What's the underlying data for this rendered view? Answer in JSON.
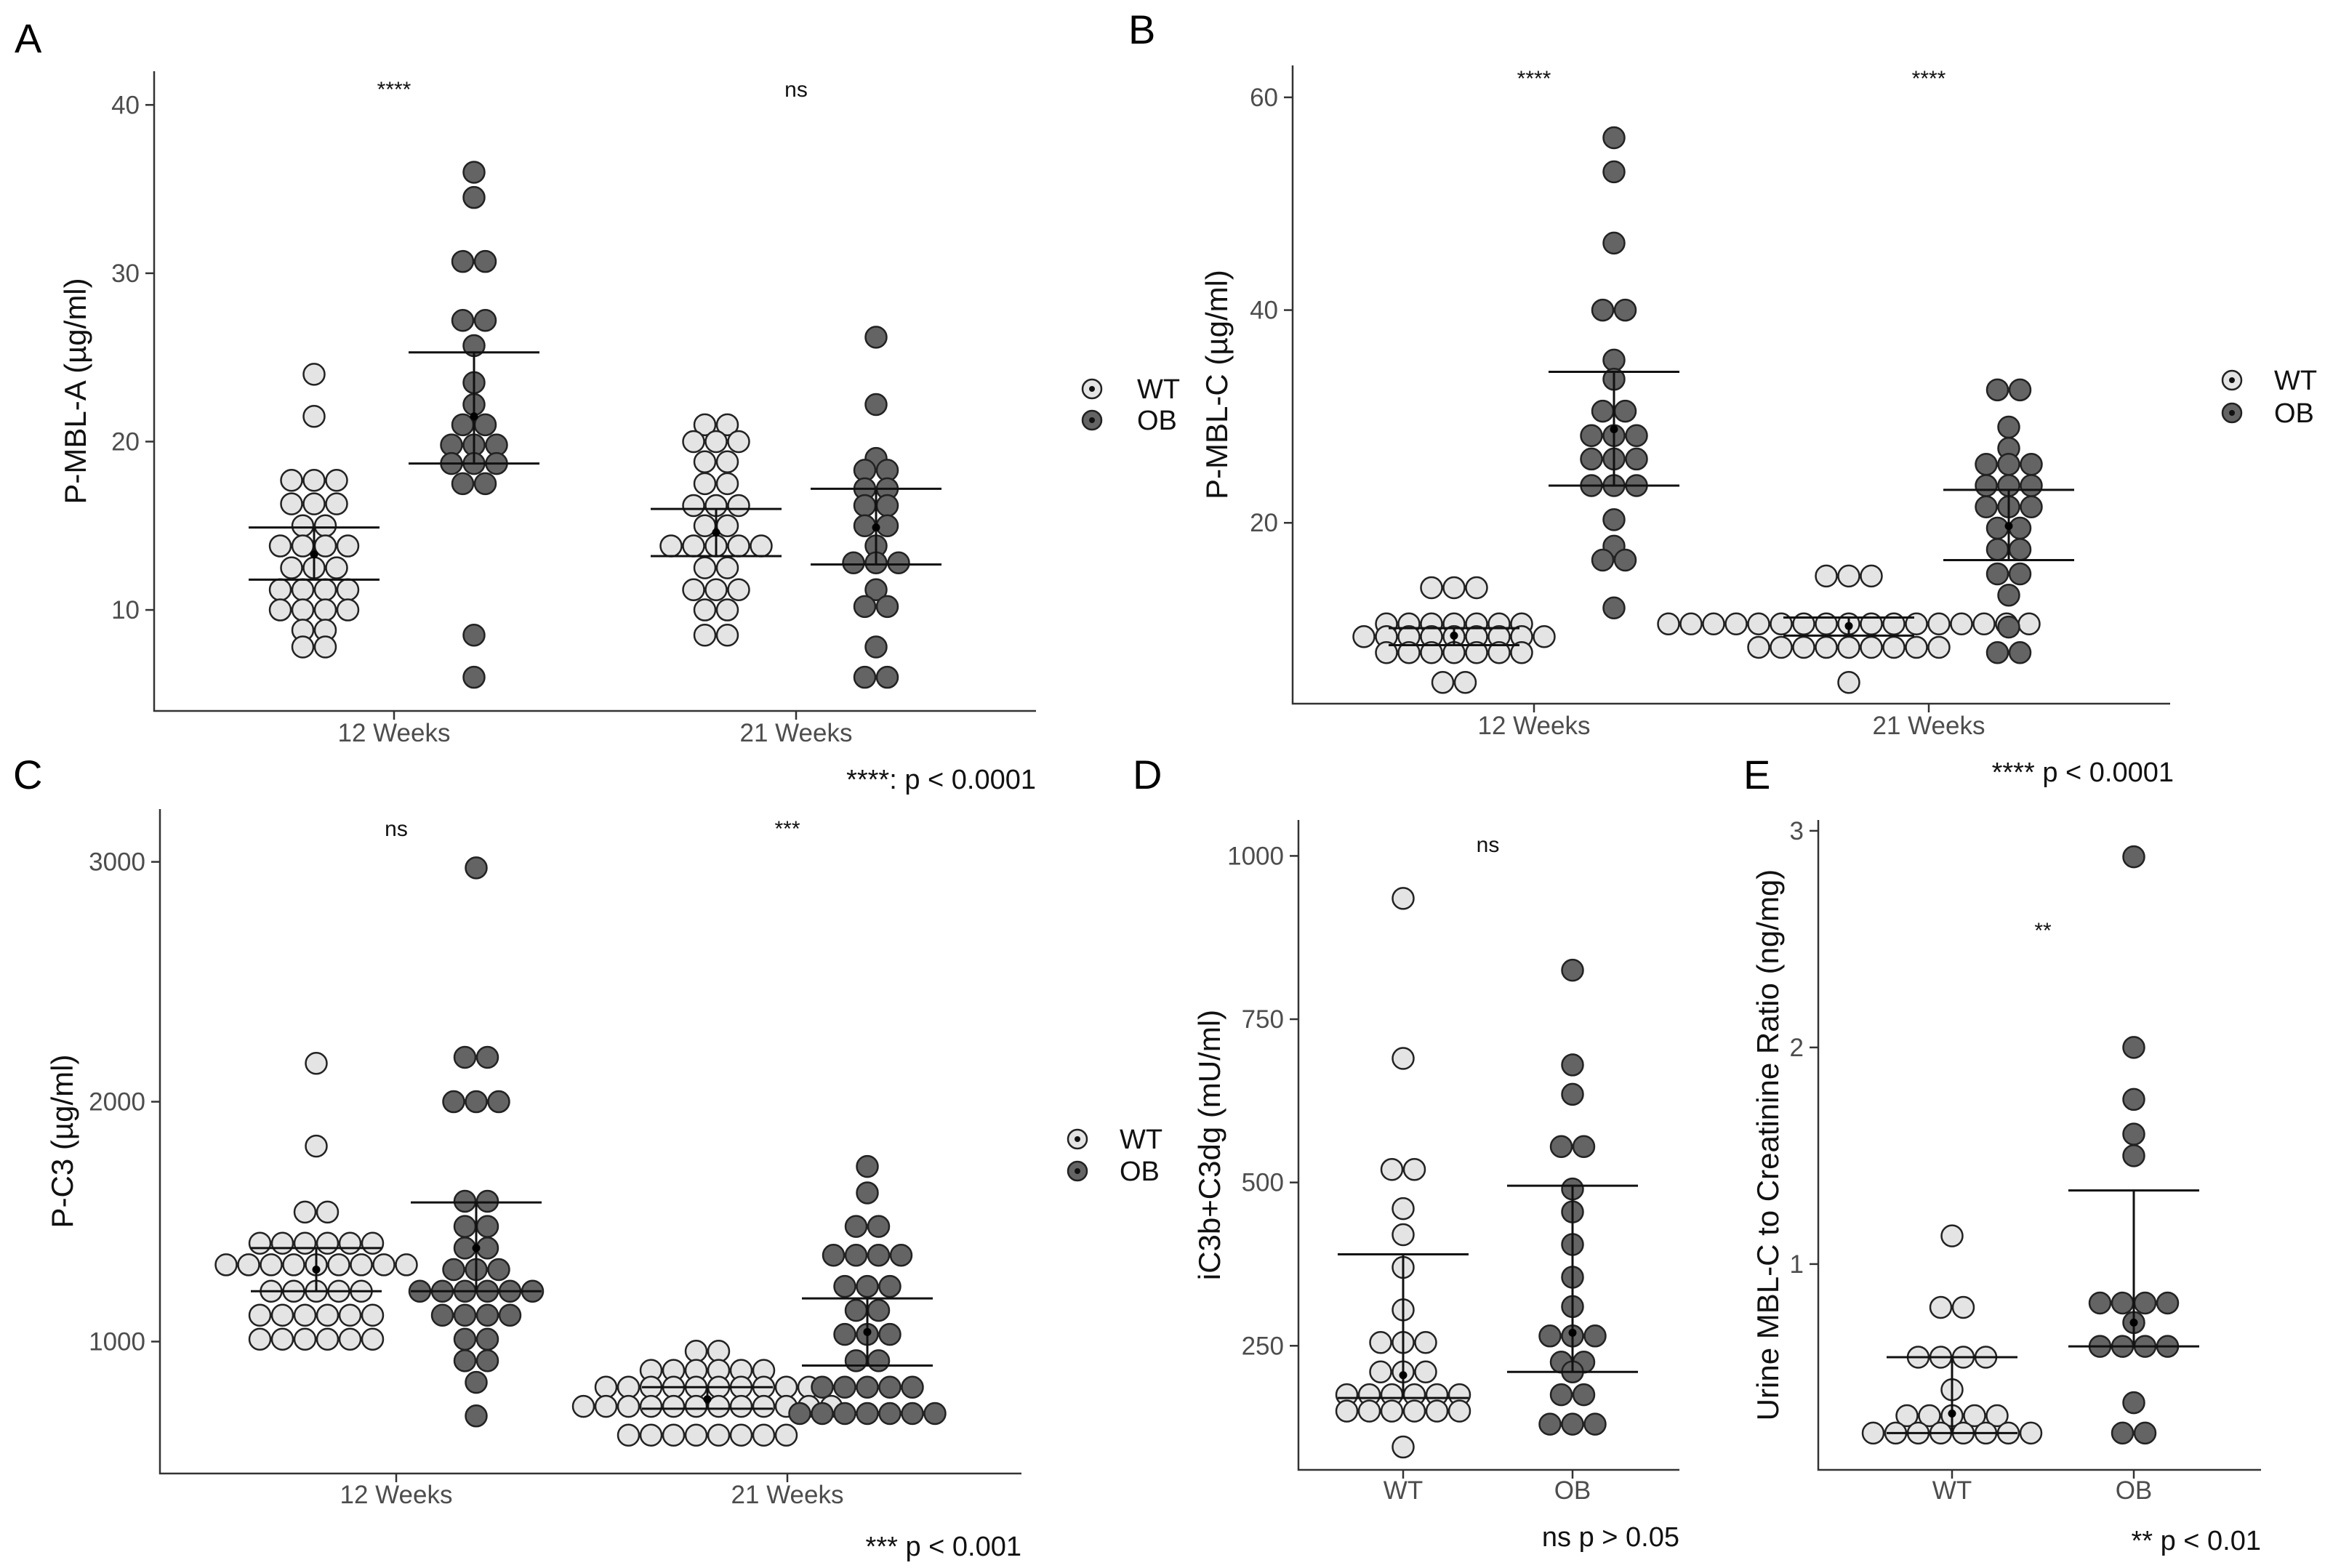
{
  "colors": {
    "WT": "#e4e4e4",
    "OB": "#646464",
    "axis": "#333333"
  },
  "legends": [
    {
      "panel": "A",
      "items": [
        {
          "label": "WT"
        },
        {
          "label": "OB"
        }
      ]
    },
    {
      "panel": "B",
      "items": [
        {
          "label": "WT"
        },
        {
          "label": "OB"
        }
      ]
    },
    {
      "panel": "C",
      "items": [
        {
          "label": "WT"
        },
        {
          "label": "OB"
        }
      ]
    }
  ],
  "footnotes": {
    "AB": "****: p < 0.0001",
    "C": "*** p < 0.001",
    "D": "ns p > 0.05",
    "E_top": "**** p < 0.0001",
    "E": "** p < 0.01"
  },
  "chart_data": [
    {
      "panel": "A",
      "type": "scatter",
      "ylabel": "P-MBL-A (µg/ml)",
      "xlabel": "",
      "ylim": [
        4,
        42
      ],
      "yticks": [
        10,
        20,
        30,
        40
      ],
      "categories": [
        "12 Weeks",
        "21 Weeks"
      ],
      "significance": [
        "****",
        "ns"
      ],
      "series": [
        {
          "name": "WT",
          "groups": [
            {
              "category": "12 Weeks",
              "mean": 13.3,
              "ci": [
                11.8,
                14.9
              ],
              "values": [
                24,
                21.5,
                17.7,
                17.7,
                17.7,
                16.3,
                16.3,
                16.3,
                15,
                15,
                13.8,
                13.8,
                13.8,
                13.8,
                12.5,
                12.5,
                12.5,
                11.2,
                11.2,
                11.2,
                11.2,
                10,
                10,
                10,
                10,
                8.8,
                8.8,
                7.8,
                7.8
              ]
            },
            {
              "category": "21 Weeks",
              "mean": 14.6,
              "ci": [
                13.2,
                16
              ],
              "values": [
                21,
                21,
                20,
                20,
                20,
                18.8,
                18.8,
                17.5,
                17.5,
                16.2,
                16.2,
                16.2,
                15,
                15,
                13.8,
                13.8,
                13.8,
                13.8,
                13.8,
                12.5,
                12.5,
                11.2,
                11.2,
                11.2,
                10,
                10,
                8.5,
                8.5
              ]
            }
          ]
        },
        {
          "name": "OB",
          "groups": [
            {
              "category": "12 Weeks",
              "mean": 21.5,
              "ci": [
                18.7,
                25.3
              ],
              "values": [
                36,
                34.5,
                30.7,
                30.7,
                27.2,
                27.2,
                25.7,
                23.5,
                22.2,
                21,
                21,
                19.8,
                19.8,
                19.8,
                18.7,
                18.7,
                18.7,
                17.5,
                17.5,
                8.5,
                6
              ]
            },
            {
              "category": "21 Weeks",
              "mean": 14.9,
              "ci": [
                12.7,
                17.2
              ],
              "values": [
                26.2,
                22.2,
                19,
                18.3,
                18.3,
                17.2,
                17.2,
                16.2,
                16.2,
                15,
                15,
                13.8,
                12.8,
                12.8,
                12.8,
                11.2,
                10.2,
                10.2,
                7.8,
                6,
                6
              ]
            }
          ]
        }
      ]
    },
    {
      "panel": "B",
      "type": "scatter",
      "ylabel": "P-MBL-C (µg/ml)",
      "xlabel": "",
      "ylim": [
        3,
        63
      ],
      "yticks": [
        20,
        40,
        60
      ],
      "categories": [
        "12 Weeks",
        "21 Weeks"
      ],
      "significance": [
        "****",
        "****"
      ],
      "series": [
        {
          "name": "WT",
          "groups": [
            {
              "category": "12 Weeks",
              "mean": 9.4,
              "ci": [
                8.5,
                10.1
              ],
              "values": [
                13.9,
                13.9,
                13.9,
                10.5,
                10.5,
                10.5,
                10.5,
                10.5,
                10.5,
                10.5,
                9.3,
                9.3,
                9.3,
                9.3,
                9.3,
                9.3,
                9.3,
                9.3,
                9.3,
                7.8,
                7.8,
                7.8,
                7.8,
                7.8,
                7.8,
                7.8,
                5,
                5
              ]
            },
            {
              "category": "21 Weeks",
              "mean": 10.3,
              "ci": [
                9.4,
                11.1
              ],
              "values": [
                15,
                15,
                15,
                10.5,
                10.5,
                10.5,
                10.5,
                10.5,
                10.5,
                10.5,
                10.5,
                10.5,
                10.5,
                10.5,
                10.5,
                10.5,
                10.5,
                10.5,
                10.5,
                10.5,
                8.3,
                8.3,
                8.3,
                8.3,
                8.3,
                8.3,
                8.3,
                8.3,
                8.3,
                5
              ]
            }
          ]
        },
        {
          "name": "OB",
          "groups": [
            {
              "category": "12 Weeks",
              "mean": 28.8,
              "ci": [
                23.5,
                34.2
              ],
              "values": [
                56.2,
                53,
                46.3,
                40,
                40,
                35.3,
                33.5,
                30.5,
                30.5,
                28.2,
                28.2,
                28.2,
                26,
                26,
                26,
                23.5,
                23.5,
                23.5,
                20.3,
                17.8,
                16.5,
                16.5,
                12
              ]
            },
            {
              "category": "21 Weeks",
              "mean": 19.7,
              "ci": [
                16.5,
                23.1
              ],
              "values": [
                32.5,
                32.5,
                29,
                27,
                25.5,
                25.5,
                25.5,
                23.5,
                23.5,
                23.5,
                21.5,
                21.5,
                21.5,
                19.5,
                19.5,
                17.5,
                17.5,
                15.2,
                15.2,
                13.2,
                10.2,
                7.8,
                7.8
              ]
            }
          ]
        }
      ]
    },
    {
      "panel": "C",
      "type": "scatter",
      "ylabel": "P-C3 (µg/ml)",
      "xlabel": "",
      "ylim": [
        450,
        3220
      ],
      "yticks": [
        1000,
        2000,
        3000
      ],
      "categories": [
        "12 Weeks",
        "21 Weeks"
      ],
      "significance": [
        "ns",
        "***"
      ],
      "series": [
        {
          "name": "WT",
          "groups": [
            {
              "category": "12 Weeks",
              "mean": 1300,
              "ci": [
                1210,
                1390
              ],
              "values": [
                2160,
                1815,
                1540,
                1540,
                1410,
                1410,
                1410,
                1410,
                1410,
                1410,
                1320,
                1320,
                1320,
                1320,
                1320,
                1320,
                1320,
                1320,
                1320,
                1210,
                1210,
                1210,
                1210,
                1210,
                1110,
                1110,
                1110,
                1110,
                1110,
                1110,
                1010,
                1010,
                1010,
                1010,
                1010,
                1010
              ]
            },
            {
              "category": "21 Weeks",
              "mean": 760,
              "ci": [
                720,
                810
              ],
              "values": [
                960,
                960,
                880,
                880,
                880,
                880,
                880,
                880,
                810,
                810,
                810,
                810,
                810,
                810,
                810,
                810,
                810,
                810,
                730,
                730,
                730,
                730,
                730,
                730,
                730,
                730,
                730,
                730,
                730,
                730,
                610,
                610,
                610,
                610,
                610,
                610,
                610,
                610
              ]
            }
          ]
        },
        {
          "name": "OB",
          "groups": [
            {
              "category": "12 Weeks",
              "mean": 1390,
              "ci": [
                1210,
                1580
              ],
              "values": [
                2975,
                2185,
                2185,
                2000,
                2000,
                2000,
                1585,
                1585,
                1480,
                1480,
                1390,
                1390,
                1300,
                1300,
                1300,
                1210,
                1210,
                1210,
                1210,
                1210,
                1210,
                1110,
                1110,
                1110,
                1110,
                1010,
                1010,
                920,
                920,
                830,
                690
              ]
            },
            {
              "category": "21 Weeks",
              "mean": 1040,
              "ci": [
                900,
                1180
              ],
              "values": [
                1730,
                1620,
                1480,
                1480,
                1360,
                1360,
                1360,
                1360,
                1230,
                1230,
                1230,
                1130,
                1130,
                1030,
                1030,
                1030,
                920,
                920,
                810,
                810,
                810,
                810,
                810,
                700,
                700,
                700,
                700,
                700,
                700,
                700
              ]
            }
          ]
        }
      ]
    },
    {
      "panel": "D",
      "type": "scatter",
      "ylabel": "iC3b+C3dg (mU/ml)",
      "xlabel": "",
      "ylim": [
        60,
        1055
      ],
      "yticks": [
        250,
        500,
        750,
        1000
      ],
      "categories": [
        "WT",
        "OB"
      ],
      "significance": [
        "ns"
      ],
      "series": [
        {
          "name": "WT",
          "category": "WT",
          "mean": 205,
          "ci": [
            170,
            390
          ],
          "values": [
            935,
            690,
            520,
            520,
            460,
            420,
            370,
            305,
            255,
            255,
            255,
            210,
            210,
            210,
            175,
            175,
            175,
            175,
            175,
            175,
            150,
            150,
            150,
            150,
            150,
            150,
            95
          ]
        },
        {
          "name": "OB",
          "category": "OB",
          "mean": 270,
          "ci": [
            210,
            495
          ],
          "values": [
            825,
            680,
            635,
            555,
            555,
            490,
            455,
            405,
            355,
            310,
            265,
            265,
            265,
            225,
            225,
            210,
            175,
            175,
            130,
            130,
            130
          ]
        }
      ]
    },
    {
      "panel": "E",
      "type": "scatter",
      "ylabel": "Urine MBL-C to Creatinine Ratio (ng/mg)",
      "xlabel": "",
      "ylim": [
        0.05,
        3.05
      ],
      "yticks": [
        1,
        2,
        3
      ],
      "categories": [
        "WT",
        "OB"
      ],
      "significance": [
        "**"
      ],
      "series": [
        {
          "name": "WT",
          "category": "WT",
          "mean": 0.31,
          "ci": [
            0.22,
            0.57
          ],
          "values": [
            1.13,
            0.8,
            0.8,
            0.57,
            0.57,
            0.57,
            0.57,
            0.42,
            0.3,
            0.3,
            0.3,
            0.3,
            0.3,
            0.22,
            0.22,
            0.22,
            0.22,
            0.22,
            0.22,
            0.22,
            0.22
          ]
        },
        {
          "name": "OB",
          "category": "OB",
          "mean": 0.73,
          "ci": [
            0.62,
            1.34
          ],
          "values": [
            2.88,
            2,
            1.76,
            1.6,
            1.5,
            0.82,
            0.82,
            0.82,
            0.82,
            0.73,
            0.62,
            0.62,
            0.62,
            0.62,
            0.36,
            0.22,
            0.22
          ]
        }
      ]
    }
  ]
}
